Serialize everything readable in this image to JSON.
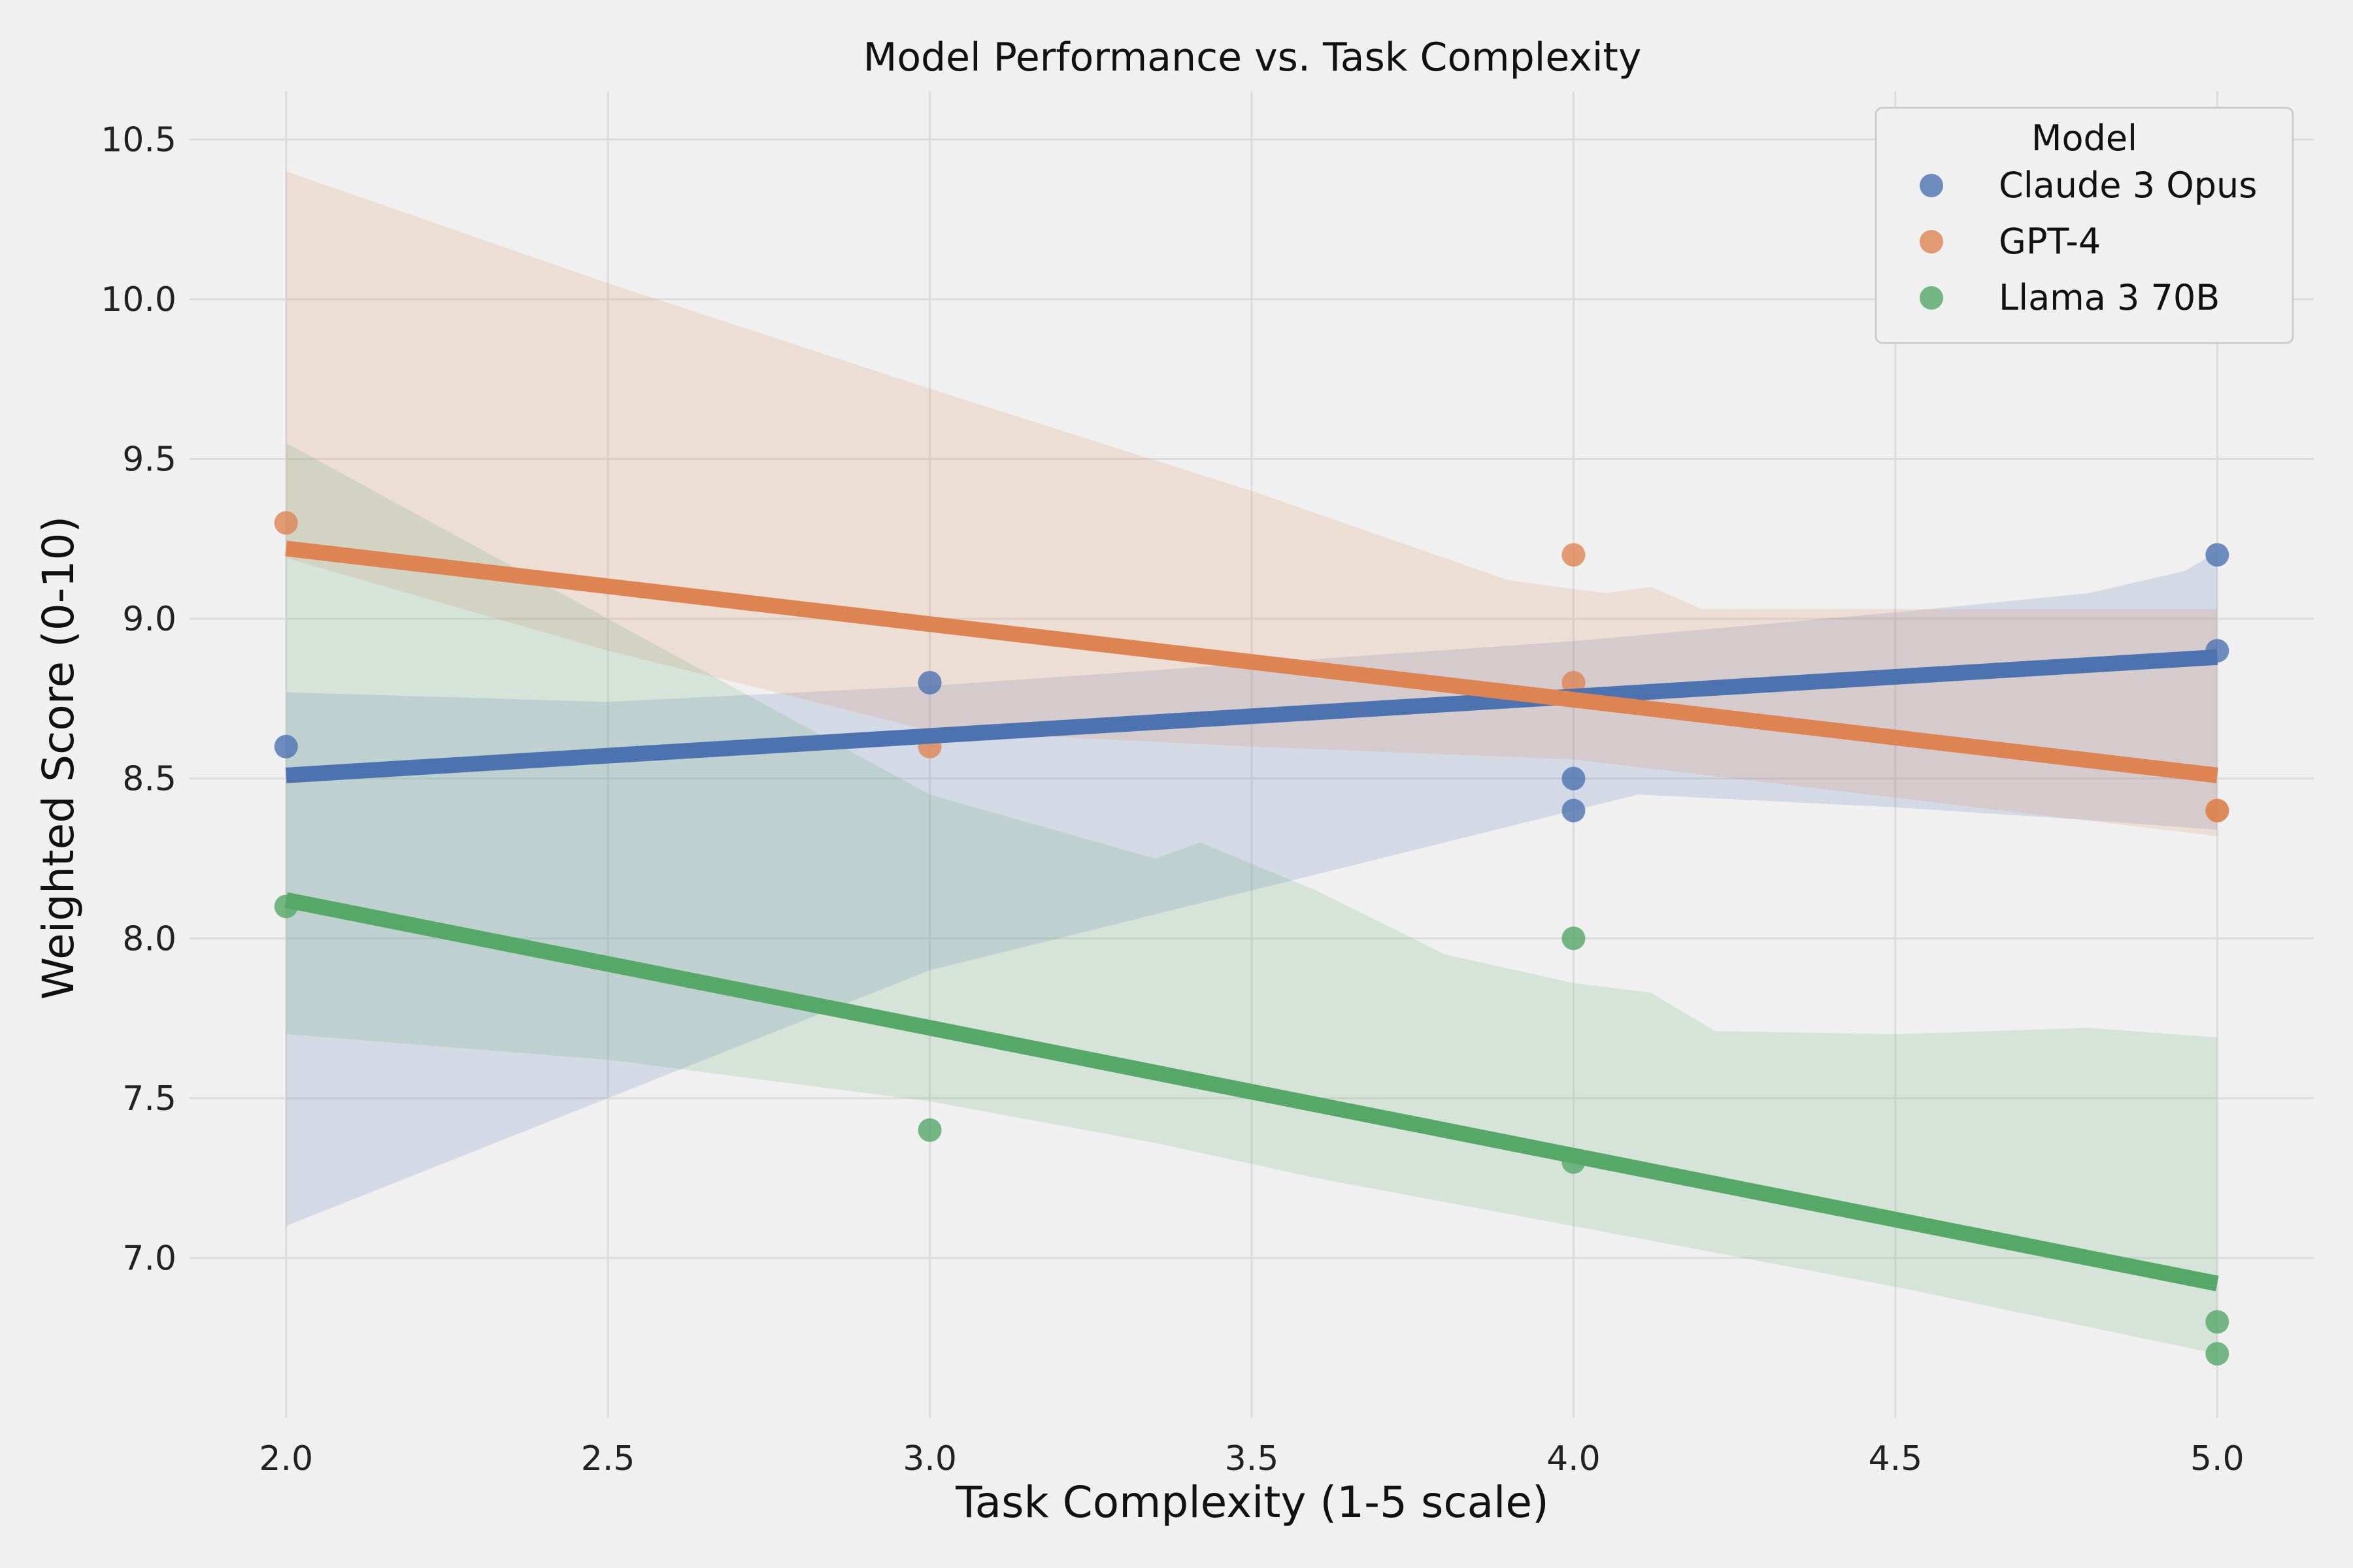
{
  "chart_data": {
    "type": "scatter",
    "title": "Model Performance vs. Task Complexity",
    "xlabel": "Task Complexity (1-5 scale)",
    "ylabel": "Weighted Score (0-10)",
    "xlim": [
      1.85,
      5.15
    ],
    "ylim": [
      6.5,
      10.65
    ],
    "xticks": [
      2.0,
      2.5,
      3.0,
      3.5,
      4.0,
      4.5,
      5.0
    ],
    "xtick_labels": [
      "2.0",
      "2.5",
      "3.0",
      "3.5",
      "4.0",
      "4.5",
      "5.0"
    ],
    "yticks": [
      7.0,
      7.5,
      8.0,
      8.5,
      9.0,
      9.5,
      10.0,
      10.5
    ],
    "ytick_labels": [
      "7.0",
      "7.5",
      "8.0",
      "8.5",
      "9.0",
      "9.5",
      "10.0",
      "10.5"
    ],
    "grid": true,
    "legend": {
      "title": "Model",
      "placement": "top-right"
    },
    "series": [
      {
        "name": "Claude 3 Opus",
        "color": "#4c72b0",
        "points": [
          [
            2,
            8.6
          ],
          [
            3,
            8.8
          ],
          [
            4,
            8.5
          ],
          [
            4,
            8.4
          ],
          [
            5,
            9.2
          ],
          [
            5,
            8.9
          ]
        ],
        "fit": [
          [
            2,
            8.51
          ],
          [
            5,
            8.88
          ]
        ],
        "ci_upper": [
          [
            2,
            8.77
          ],
          [
            2.5,
            8.74
          ],
          [
            3,
            8.79
          ],
          [
            3.5,
            8.86
          ],
          [
            4,
            8.93
          ],
          [
            4.5,
            9.02
          ],
          [
            4.8,
            9.08
          ],
          [
            4.95,
            9.15
          ],
          [
            5,
            9.21
          ]
        ],
        "ci_lower": [
          [
            2,
            7.1
          ],
          [
            2.5,
            7.5
          ],
          [
            3,
            7.9
          ],
          [
            3.5,
            8.15
          ],
          [
            4,
            8.4
          ],
          [
            4.1,
            8.45
          ],
          [
            4.5,
            8.41
          ],
          [
            4.8,
            8.37
          ],
          [
            5,
            8.34
          ]
        ]
      },
      {
        "name": "GPT-4",
        "color": "#dd8452",
        "points": [
          [
            2,
            9.3
          ],
          [
            3,
            8.6
          ],
          [
            4,
            9.2
          ],
          [
            4,
            8.8
          ],
          [
            5,
            8.4
          ],
          [
            5,
            8.4
          ]
        ],
        "fit": [
          [
            2,
            9.22
          ],
          [
            5,
            8.51
          ]
        ],
        "ci_upper": [
          [
            2,
            10.4
          ],
          [
            2.5,
            10.05
          ],
          [
            3,
            9.72
          ],
          [
            3.5,
            9.4
          ],
          [
            3.9,
            9.12
          ],
          [
            4.05,
            9.08
          ],
          [
            4.12,
            9.1
          ],
          [
            4.2,
            9.03
          ],
          [
            5,
            9.03
          ]
        ],
        "ci_lower": [
          [
            2,
            9.19
          ],
          [
            2.5,
            8.9
          ],
          [
            3,
            8.65
          ],
          [
            3.5,
            8.6
          ],
          [
            4,
            8.56
          ],
          [
            4.5,
            8.44
          ],
          [
            5,
            8.32
          ]
        ]
      },
      {
        "name": "Llama 3 70B",
        "color": "#55a868",
        "points": [
          [
            2,
            8.1
          ],
          [
            3,
            7.4
          ],
          [
            4,
            8.0
          ],
          [
            4,
            7.3
          ],
          [
            5,
            6.8
          ],
          [
            5,
            6.7
          ]
        ],
        "fit": [
          [
            2,
            8.12
          ],
          [
            5,
            6.92
          ]
        ],
        "ci_upper": [
          [
            2,
            9.55
          ],
          [
            2.5,
            9.0
          ],
          [
            3,
            8.45
          ],
          [
            3.35,
            8.25
          ],
          [
            3.42,
            8.3
          ],
          [
            3.6,
            8.15
          ],
          [
            3.8,
            7.95
          ],
          [
            4,
            7.86
          ],
          [
            4.12,
            7.83
          ],
          [
            4.22,
            7.71
          ],
          [
            4.5,
            7.7
          ],
          [
            4.8,
            7.72
          ],
          [
            5,
            7.69
          ]
        ],
        "ci_lower": [
          [
            2,
            7.7
          ],
          [
            2.5,
            7.62
          ],
          [
            3,
            7.49
          ],
          [
            3.35,
            7.36
          ],
          [
            3.6,
            7.25
          ],
          [
            4,
            7.1
          ],
          [
            4.5,
            6.91
          ],
          [
            5,
            6.7
          ]
        ]
      }
    ]
  }
}
